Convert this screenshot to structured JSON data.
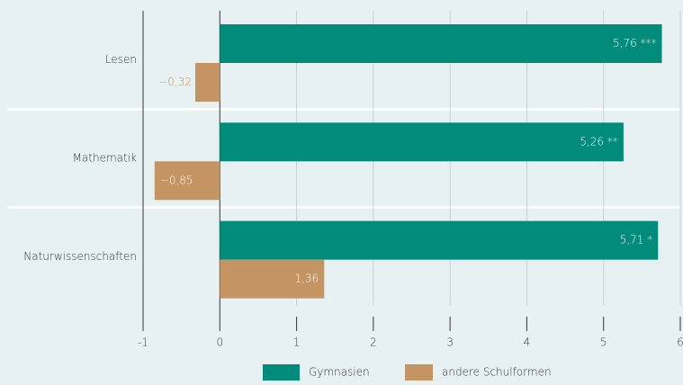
{
  "chart_data": {
    "type": "bar",
    "orientation": "horizontal",
    "categories": [
      "Lesen",
      "Mathematik",
      "Naturwissenschaften"
    ],
    "series": [
      {
        "name": "Gymnasien",
        "color": "#008b7a",
        "values": [
          5.76,
          5.26,
          5.71
        ],
        "value_labels": [
          "5,76 ***",
          "5,26 **",
          "5,71 *"
        ]
      },
      {
        "name": "andere Schulformen",
        "color": "#c49562",
        "values": [
          -0.32,
          -0.85,
          1.36
        ],
        "value_labels": [
          "−0,32",
          "−0,85",
          "1,36"
        ]
      }
    ],
    "xlim": [
      -1,
      6
    ],
    "xticks": [
      -1,
      0,
      1,
      2,
      3,
      4,
      5,
      6
    ],
    "grid": true,
    "legend": "bottom"
  }
}
